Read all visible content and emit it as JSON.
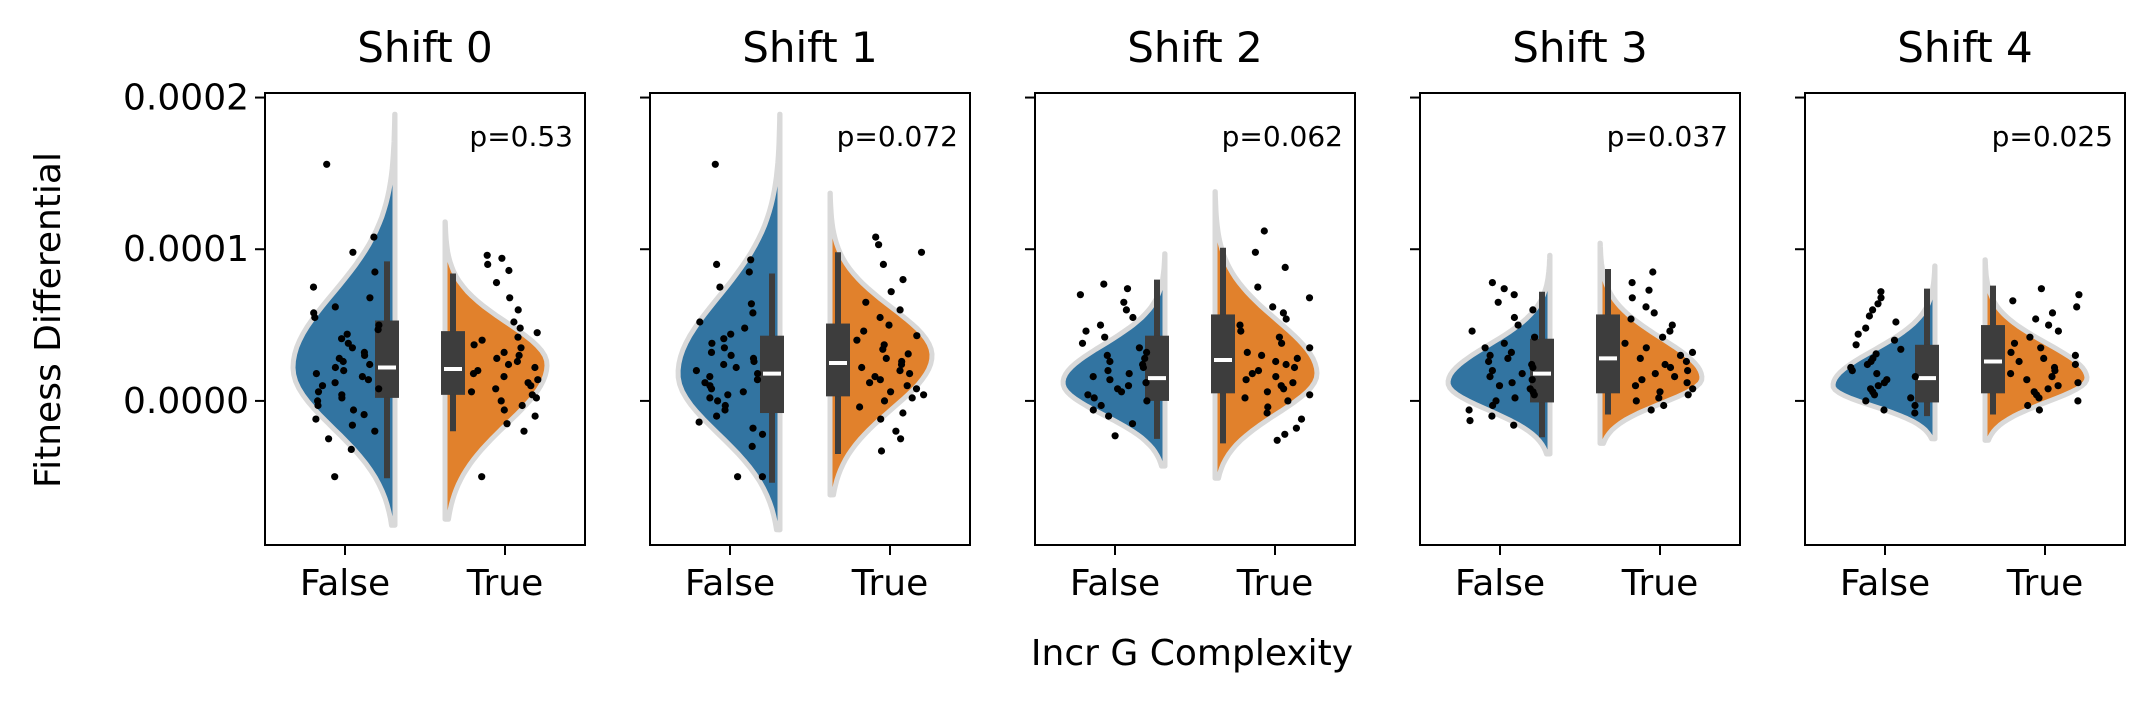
{
  "chart_data": {
    "type": "violin",
    "xlabel": "Incr G Complexity",
    "ylabel": "Fitness Differential",
    "categories": [
      "False",
      "True"
    ],
    "y_ticks": [
      "0.0000",
      "0.0001",
      "0.0002"
    ],
    "y_tick_values": [
      0.0,
      0.0001,
      0.0002
    ],
    "ylim": [
      -9.5e-05,
      0.000203
    ],
    "colors": {
      "False": "#3274a1",
      "True": "#e1812c",
      "outline": "#d9d9d9",
      "box": "#3d3d3d",
      "median": "#ffffff",
      "points": "#000000"
    },
    "panels": [
      {
        "title": "Shift 0",
        "p_value": "p=0.53",
        "groups": [
          {
            "category": "False",
            "median": 2.2e-05,
            "q1": 2e-06,
            "q3": 5.3e-05,
            "whisker_low": -5.1e-05,
            "whisker_high": 9.2e-05,
            "kde_low": -8.2e-05,
            "kde_high": 0.000189,
            "kde_peak": 2.2e-05,
            "points": [
              0.000156,
              0.000108,
              9.8e-05,
              8.5e-05,
              7.5e-05,
              6.8e-05,
              6.2e-05,
              5.8e-05,
              5.5e-05,
              5e-05,
              4.7e-05,
              4.4e-05,
              4.1e-05,
              3.8e-05,
              3.5e-05,
              3.2e-05,
              3e-05,
              2.8e-05,
              2.6e-05,
              2.4e-05,
              2.2e-05,
              2e-05,
              1.8e-05,
              1.6e-05,
              1.4e-05,
              1.2e-05,
              1e-05,
              8e-06,
              6e-06,
              4e-06,
              2e-06,
              0.0,
              -3e-06,
              -6e-06,
              -9e-06,
              -1.2e-05,
              -1.6e-05,
              -2e-05,
              -2.5e-05,
              -3.2e-05,
              -5e-05
            ]
          },
          {
            "category": "True",
            "median": 2.1e-05,
            "q1": 4e-06,
            "q3": 4.6e-05,
            "whisker_low": -2e-05,
            "whisker_high": 8.4e-05,
            "kde_low": -7.8e-05,
            "kde_high": 0.000118,
            "kde_peak": 2.4e-05,
            "points": [
              9.6e-05,
              9.4e-05,
              9e-05,
              8.6e-05,
              7.8e-05,
              6.8e-05,
              6e-05,
              5.2e-05,
              4.8e-05,
              4.5e-05,
              4.2e-05,
              4e-05,
              3.7e-05,
              3.5e-05,
              3.2e-05,
              3e-05,
              2.8e-05,
              2.6e-05,
              2.4e-05,
              2.2e-05,
              2e-05,
              1.8e-05,
              1.6e-05,
              1.4e-05,
              1.2e-05,
              1e-05,
              8e-06,
              6e-06,
              4e-06,
              2e-06,
              0.0,
              -3e-06,
              -6e-06,
              -1e-05,
              -1.5e-05,
              -2e-05,
              -5e-05
            ]
          }
        ]
      },
      {
        "title": "Shift 1",
        "p_value": "p=0.072",
        "groups": [
          {
            "category": "False",
            "median": 1.8e-05,
            "q1": -8e-06,
            "q3": 4.3e-05,
            "whisker_low": -5.4e-05,
            "whisker_high": 8.4e-05,
            "kde_low": -8.5e-05,
            "kde_high": 0.000189,
            "kde_peak": 1.8e-05,
            "points": [
              0.000156,
              9.3e-05,
              9e-05,
              8.5e-05,
              7.5e-05,
              6.4e-05,
              5.8e-05,
              5.2e-05,
              4.8e-05,
              4.4e-05,
              4.1e-05,
              3.8e-05,
              3.5e-05,
              3.2e-05,
              3e-05,
              2.8e-05,
              2.6e-05,
              2.4e-05,
              2.2e-05,
              2e-05,
              1.8e-05,
              1.6e-05,
              1.4e-05,
              1.2e-05,
              1e-05,
              8e-06,
              6e-06,
              4e-06,
              2e-06,
              0.0,
              -3e-06,
              -6e-06,
              -1e-05,
              -1.4e-05,
              -1.8e-05,
              -2.2e-05,
              -3e-05,
              -5e-05,
              -5e-05
            ]
          },
          {
            "category": "True",
            "median": 2.5e-05,
            "q1": 3e-06,
            "q3": 5.1e-05,
            "whisker_low": -3.5e-05,
            "whisker_high": 9.8e-05,
            "kde_low": -6.2e-05,
            "kde_high": 0.000137,
            "kde_peak": 3e-05,
            "points": [
              0.000108,
              0.000103,
              9.8e-05,
              9e-05,
              8e-05,
              7.2e-05,
              6.5e-05,
              6e-05,
              5.5e-05,
              5e-05,
              4.6e-05,
              4.3e-05,
              4e-05,
              3.7e-05,
              3.4e-05,
              3.1e-05,
              2.8e-05,
              2.6e-05,
              2.4e-05,
              2.2e-05,
              2e-05,
              1.8e-05,
              1.6e-05,
              1.4e-05,
              1.2e-05,
              1e-05,
              8e-06,
              6e-06,
              4e-06,
              2e-06,
              0.0,
              -4e-06,
              -8e-06,
              -1.2e-05,
              -2e-05,
              -2.5e-05,
              -3.3e-05
            ]
          }
        ]
      },
      {
        "title": "Shift 2",
        "p_value": "p=0.062",
        "groups": [
          {
            "category": "False",
            "median": 1.5e-05,
            "q1": 0.0,
            "q3": 4.3e-05,
            "whisker_low": -2.5e-05,
            "whisker_high": 8e-05,
            "kde_low": -4.3e-05,
            "kde_high": 9.7e-05,
            "kde_peak": 1.2e-05,
            "points": [
              7.7e-05,
              7.4e-05,
              7e-05,
              6.5e-05,
              6e-05,
              5.5e-05,
              5e-05,
              4.6e-05,
              4.2e-05,
              3.8e-05,
              3.5e-05,
              3.2e-05,
              3e-05,
              2.8e-05,
              2.6e-05,
              2.4e-05,
              2.2e-05,
              2e-05,
              1.8e-05,
              1.6e-05,
              1.4e-05,
              1.2e-05,
              1e-05,
              8e-06,
              6e-06,
              4e-06,
              2e-06,
              0.0,
              -3e-06,
              -6e-06,
              -1e-05,
              -1.5e-05,
              -2.3e-05
            ]
          },
          {
            "category": "True",
            "median": 2.7e-05,
            "q1": 5e-06,
            "q3": 5.7e-05,
            "whisker_low": -2.8e-05,
            "whisker_high": 0.000101,
            "kde_low": -5.1e-05,
            "kde_high": 0.000138,
            "kde_peak": 1.8e-05,
            "points": [
              0.000112,
              9.8e-05,
              8.8e-05,
              7.5e-05,
              6.8e-05,
              6.2e-05,
              5.8e-05,
              5.4e-05,
              5e-05,
              4.6e-05,
              4.2e-05,
              3.8e-05,
              3.5e-05,
              3.2e-05,
              3e-05,
              2.8e-05,
              2.6e-05,
              2.4e-05,
              2.2e-05,
              2e-05,
              1.8e-05,
              1.6e-05,
              1.4e-05,
              1.2e-05,
              1e-05,
              8e-06,
              6e-06,
              4e-06,
              2e-06,
              0.0,
              -4e-06,
              -8e-06,
              -1.2e-05,
              -1.8e-05,
              -2.2e-05,
              -2.6e-05
            ]
          }
        ]
      },
      {
        "title": "Shift 3",
        "p_value": "p=0.037",
        "groups": [
          {
            "category": "False",
            "median": 1.8e-05,
            "q1": -1e-06,
            "q3": 4.1e-05,
            "whisker_low": -2.4e-05,
            "whisker_high": 7.2e-05,
            "kde_low": -3.5e-05,
            "kde_high": 9.6e-05,
            "kde_peak": 1.2e-05,
            "points": [
              7.8e-05,
              7.4e-05,
              7e-05,
              6.5e-05,
              6e-05,
              5.5e-05,
              5e-05,
              4.6e-05,
              4.2e-05,
              3.8e-05,
              3.5e-05,
              3.2e-05,
              3e-05,
              2.8e-05,
              2.6e-05,
              2.4e-05,
              2.2e-05,
              2e-05,
              1.8e-05,
              1.6e-05,
              1.4e-05,
              1.2e-05,
              1e-05,
              8e-06,
              6e-06,
              4e-06,
              2e-06,
              0.0,
              -3e-06,
              -6e-06,
              -1e-05,
              -1.3e-05,
              -1.6e-05
            ]
          },
          {
            "category": "True",
            "median": 2.8e-05,
            "q1": 5e-06,
            "q3": 5.7e-05,
            "whisker_low": -9e-06,
            "whisker_high": 8.7e-05,
            "kde_low": -2.8e-05,
            "kde_high": 0.000104,
            "kde_peak": 1.5e-05,
            "points": [
              8.5e-05,
              7.8e-05,
              7.3e-05,
              6.8e-05,
              6.2e-05,
              5.8e-05,
              5.4e-05,
              5e-05,
              4.6e-05,
              4.2e-05,
              3.8e-05,
              3.5e-05,
              3.2e-05,
              3e-05,
              2.8e-05,
              2.6e-05,
              2.4e-05,
              2.2e-05,
              2e-05,
              1.8e-05,
              1.6e-05,
              1.4e-05,
              1.2e-05,
              1e-05,
              8e-06,
              6e-06,
              4e-06,
              2e-06,
              0.0,
              -3e-06,
              -6e-06
            ]
          }
        ]
      },
      {
        "title": "Shift 4",
        "p_value": "p=0.025",
        "groups": [
          {
            "category": "False",
            "median": 1.5e-05,
            "q1": -1e-06,
            "q3": 3.7e-05,
            "whisker_low": -1e-05,
            "whisker_high": 7.4e-05,
            "kde_low": -2.5e-05,
            "kde_high": 8.9e-05,
            "kde_peak": 1e-05,
            "points": [
              7.2e-05,
              6.8e-05,
              6.4e-05,
              6e-05,
              5.6e-05,
              5.2e-05,
              4.8e-05,
              4.4e-05,
              4e-05,
              3.7e-05,
              3.4e-05,
              3.1e-05,
              2.8e-05,
              2.6e-05,
              2.4e-05,
              2.2e-05,
              2e-05,
              1.8e-05,
              1.6e-05,
              1.4e-05,
              1.2e-05,
              1e-05,
              8e-06,
              6e-06,
              4e-06,
              2e-06,
              0.0,
              -3e-06,
              -6e-06,
              -8e-06
            ]
          },
          {
            "category": "True",
            "median": 2.6e-05,
            "q1": 5e-06,
            "q3": 5e-05,
            "whisker_low": -9e-06,
            "whisker_high": 7.6e-05,
            "kde_low": -2.6e-05,
            "kde_high": 9.3e-05,
            "kde_peak": 1.5e-05,
            "points": [
              7.4e-05,
              7e-05,
              6.6e-05,
              6.2e-05,
              5.8e-05,
              5.4e-05,
              5e-05,
              4.6e-05,
              4.2e-05,
              3.8e-05,
              3.5e-05,
              3.2e-05,
              3e-05,
              2.8e-05,
              2.6e-05,
              2.4e-05,
              2.2e-05,
              2e-05,
              1.8e-05,
              1.6e-05,
              1.4e-05,
              1.2e-05,
              1e-05,
              8e-06,
              6e-06,
              4e-06,
              2e-06,
              0.0,
              -3e-06,
              -6e-06
            ]
          }
        ]
      }
    ]
  }
}
